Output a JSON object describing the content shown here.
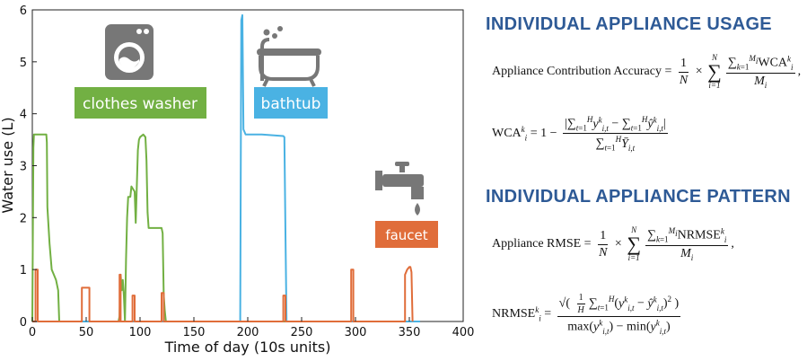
{
  "chart_data": {
    "type": "line",
    "xlabel": "Time of day (10s units)",
    "ylabel": "Water use (L)",
    "xlim": [
      0,
      400
    ],
    "ylim": [
      0,
      6
    ],
    "x_ticks": [
      "0",
      "50",
      "100",
      "150",
      "200",
      "250",
      "300",
      "350",
      "400"
    ],
    "y_ticks": [
      "0",
      "1",
      "2",
      "3",
      "4",
      "5",
      "6"
    ],
    "grid": false,
    "series": [
      {
        "name": "clothes washer",
        "color": "#72b043",
        "points": [
          [
            0,
            0
          ],
          [
            1,
            3.35
          ],
          [
            1.5,
            3.6
          ],
          [
            13,
            3.6
          ],
          [
            13.5,
            3.45
          ],
          [
            14,
            2.2
          ],
          [
            16,
            1.5
          ],
          [
            18,
            1.0
          ],
          [
            20,
            0.9
          ],
          [
            22,
            0.8
          ],
          [
            24,
            0.6
          ],
          [
            25,
            0
          ],
          [
            80,
            0
          ],
          [
            81,
            0.1
          ],
          [
            82,
            0.9
          ],
          [
            83,
            0.6
          ],
          [
            84,
            0.8
          ],
          [
            85,
            0.5
          ],
          [
            86,
            0
          ],
          [
            87,
            1.2
          ],
          [
            88,
            2.0
          ],
          [
            89,
            2.4
          ],
          [
            91,
            2.4
          ],
          [
            92,
            2.6
          ],
          [
            95,
            2.5
          ],
          [
            96,
            1.9
          ],
          [
            97,
            2.6
          ],
          [
            98,
            3.3
          ],
          [
            99,
            3.5
          ],
          [
            100,
            3.55
          ],
          [
            103,
            3.6
          ],
          [
            105,
            3.55
          ],
          [
            106,
            3.1
          ],
          [
            107,
            2.1
          ],
          [
            108,
            1.8
          ],
          [
            120,
            1.8
          ],
          [
            121,
            1.7
          ],
          [
            122,
            0.5
          ],
          [
            123,
            0.2
          ],
          [
            124,
            0
          ],
          [
            195,
            0
          ],
          [
            235,
            0
          ]
        ]
      },
      {
        "name": "bathtub",
        "color": "#4ab2e3",
        "points": [
          [
            0,
            0
          ],
          [
            193,
            0
          ],
          [
            194,
            5.8
          ],
          [
            195,
            5.9
          ],
          [
            196,
            3.7
          ],
          [
            198,
            3.6
          ],
          [
            213,
            3.6
          ],
          [
            233,
            3.57
          ],
          [
            234,
            3.55
          ],
          [
            235,
            1.7
          ],
          [
            236,
            0
          ],
          [
            360,
            0
          ]
        ]
      },
      {
        "name": "faucet",
        "color": "#e06d3a",
        "points": [
          [
            0,
            0
          ],
          [
            3,
            0
          ],
          [
            3,
            1
          ],
          [
            5,
            1
          ],
          [
            5,
            0
          ],
          [
            46,
            0
          ],
          [
            46,
            0.65
          ],
          [
            53,
            0.65
          ],
          [
            53,
            0
          ],
          [
            81,
            0
          ],
          [
            81,
            0.9
          ],
          [
            82,
            0.9
          ],
          [
            82,
            0
          ],
          [
            93,
            0
          ],
          [
            93,
            0.5
          ],
          [
            95,
            0.5
          ],
          [
            95,
            0
          ],
          [
            120,
            0
          ],
          [
            120,
            0.55
          ],
          [
            122,
            0.55
          ],
          [
            122,
            0
          ],
          [
            233,
            0
          ],
          [
            233,
            0.5
          ],
          [
            235,
            0.5
          ],
          [
            235,
            0
          ],
          [
            296,
            0
          ],
          [
            296,
            1.0
          ],
          [
            298,
            1.0
          ],
          [
            298,
            0
          ],
          [
            346,
            0
          ],
          [
            346,
            0.9
          ],
          [
            348,
            1.0
          ],
          [
            350,
            1.05
          ],
          [
            351,
            1.05
          ],
          [
            352,
            0.95
          ],
          [
            353,
            0
          ]
        ]
      }
    ],
    "labels": {
      "washer": "clothes washer",
      "bathtub": "bathtub",
      "faucet": "faucet"
    },
    "label_colors": {
      "washer": "#72b043",
      "bathtub": "#4ab2e3",
      "faucet": "#e06d3a"
    },
    "icons": [
      "washing-machine-icon",
      "bathtub-icon",
      "faucet-icon"
    ]
  },
  "sections": {
    "usage_heading": "INDIVIDUAL APPLIANCE USAGE",
    "pattern_heading": "INDIVIDUAL APPLIANCE PATTERN"
  },
  "formulas": {
    "aca_lhs": "Appliance Contribution Accuracy",
    "rmse_lhs": "Appliance RMSE",
    "wca": "WCA",
    "nrmse": "NRMSE"
  }
}
